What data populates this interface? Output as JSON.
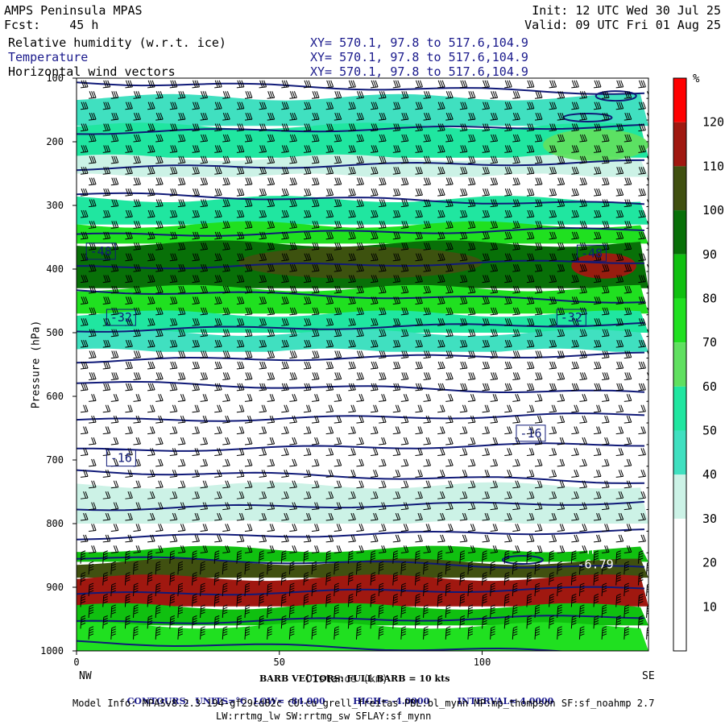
{
  "header": {
    "title": "AMPS Peninsula MPAS",
    "fcst_label": "Fcst:",
    "fcst_value": "45 h",
    "init": "Init: 12 UTC Wed 30 Jul 25",
    "valid": "Valid: 09 UTC Fri 01 Aug 25",
    "fields": [
      {
        "name": "Relative humidity (w.r.t. ice)",
        "xy": "XY= 570.1, 97.8 to 517.6,104.9"
      },
      {
        "name": "Temperature",
        "xy": "XY= 570.1, 97.8 to 517.6,104.9"
      },
      {
        "name": "Horizontal wind vectors",
        "xy": "XY= 570.1, 97.8 to 517.6,104.9"
      }
    ]
  },
  "chart_data": {
    "type": "heatmap",
    "xlabel": "Distance (km)",
    "ylabel": "Pressure (hPa)",
    "xlim": [
      0,
      141
    ],
    "ylim": [
      1000,
      100
    ],
    "x_ticks": [
      "0",
      "50",
      "100"
    ],
    "x_tick_values": [
      0,
      50,
      100
    ],
    "y_ticks": [
      "100",
      "200",
      "300",
      "400",
      "500",
      "600",
      "700",
      "800",
      "900",
      "1000"
    ],
    "y_tick_values": [
      100,
      200,
      300,
      400,
      500,
      600,
      700,
      800,
      900,
      1000
    ],
    "left_end_label": "NW",
    "right_end_label": "SE",
    "colorbar": {
      "unit": "%",
      "levels": [
        "120",
        "110",
        "100",
        "90",
        "80",
        "70",
        "60",
        "50",
        "40",
        "30",
        "20",
        "10"
      ],
      "colors": [
        "#ffffff",
        "#ffffff",
        "#ffffff",
        "#ccf2e6",
        "#40e0c0",
        "#20e6a0",
        "#60e060",
        "#20e020",
        "#10c010",
        "#087008",
        "#405010",
        "#a01810",
        "#ff0000"
      ]
    },
    "rh_bands": [
      {
        "p_top": 130,
        "p_bot": 175,
        "rh": 45
      },
      {
        "p_top": 175,
        "p_bot": 225,
        "rh": 55
      },
      {
        "p_top": 225,
        "p_bot": 255,
        "rh": 35
      },
      {
        "p_top": 255,
        "p_bot": 290,
        "rh": 15
      },
      {
        "p_top": 290,
        "p_bot": 330,
        "rh": 55
      },
      {
        "p_top": 330,
        "p_bot": 360,
        "rh": 75
      },
      {
        "p_top": 360,
        "p_bot": 430,
        "rh": 92
      },
      {
        "p_top": 430,
        "p_bot": 470,
        "rh": 75
      },
      {
        "p_top": 470,
        "p_bot": 500,
        "rh": 55
      },
      {
        "p_top": 500,
        "p_bot": 530,
        "rh": 40
      },
      {
        "p_top": 530,
        "p_bot": 680,
        "rh": 15
      },
      {
        "p_top": 680,
        "p_bot": 740,
        "rh": 25
      },
      {
        "p_top": 740,
        "p_bot": 800,
        "rh": 35
      },
      {
        "p_top": 800,
        "p_bot": 840,
        "rh": 25
      },
      {
        "p_top": 840,
        "p_bot": 860,
        "rh": 85
      },
      {
        "p_top": 860,
        "p_bot": 885,
        "rh": 105
      },
      {
        "p_top": 885,
        "p_bot": 930,
        "rh": 115
      },
      {
        "p_top": 930,
        "p_bot": 960,
        "rh": 88
      },
      {
        "p_top": 960,
        "p_bot": 1000,
        "rh": 70
      }
    ],
    "rh_blobs": [
      {
        "x": 130,
        "p": 395,
        "rx": 8,
        "rp": 20,
        "rh": 115
      },
      {
        "x": 70,
        "p": 390,
        "rx": 30,
        "rp": 25,
        "rh": 100
      },
      {
        "x": 128,
        "p": 205,
        "rx": 13,
        "rp": 25,
        "rh": 65
      }
    ],
    "temperature_isotherms_C": [
      -80,
      -76,
      -72,
      -68,
      -64,
      -60,
      -56,
      -52,
      -48,
      -44,
      -40,
      -36,
      -32,
      -28,
      -24,
      -20,
      -16,
      -12,
      -8
    ],
    "isotherm_labels": [
      {
        "text": "-48",
        "x": 6,
        "p": 372
      },
      {
        "text": "-48",
        "x": 127,
        "p": 375
      },
      {
        "text": "-32",
        "x": 11,
        "p": 476
      },
      {
        "text": "-32",
        "x": 122,
        "p": 476
      },
      {
        "text": "-16",
        "x": 11,
        "p": 697
      },
      {
        "text": "-16",
        "x": 112,
        "p": 658
      }
    ],
    "high_label": {
      "text": "H",
      "sub": "-6.79",
      "x": 127,
      "p": 860
    },
    "barb_legend": "BARB VECTORS: FULL BARB = 10 kts",
    "contour_info": {
      "contours": "CONTOURS:",
      "units": "UNITS=°C",
      "low": "LOW= -84.000",
      "high": "HIGH= -4.0000",
      "interval": "INTERVAL= 4.0000"
    }
  },
  "footer": {
    "model_info": "Model Info: MPASv8.2.3-194-gf29cd82c CU:cu_grell_freitas PBL:bl_mynn MP:mp_thompson SF:sf_noahmp 2.7",
    "model_info2": "LW:rrtmg_lw SW:rrtmg_sw SFLAY:sf_mynn"
  }
}
